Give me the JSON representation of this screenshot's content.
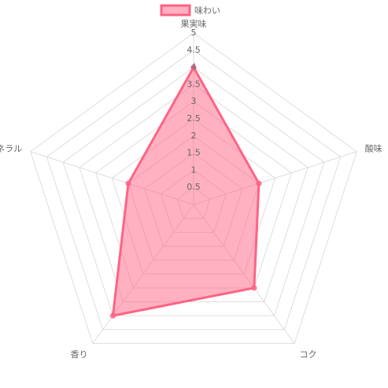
{
  "chart_data": {
    "type": "radar",
    "categories": [
      "果実味",
      "酸味",
      "コク",
      "香り",
      "ミネラル"
    ],
    "series": [
      {
        "name": "味わい",
        "color": "#ff6384",
        "values": [
          4,
          2,
          3,
          4,
          2
        ]
      }
    ],
    "rlim": [
      0,
      5
    ],
    "rticks": [
      0.5,
      1,
      1.5,
      2,
      2.5,
      3,
      3.5,
      4,
      4.5,
      5
    ],
    "legend": "top"
  }
}
